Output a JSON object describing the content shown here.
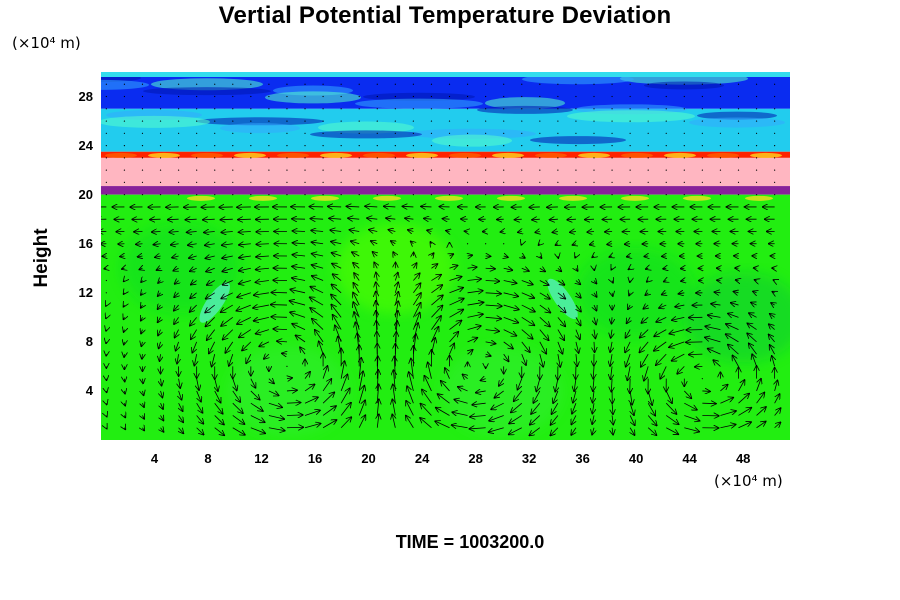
{
  "chart_data": {
    "type": "heatmap",
    "title": "Vertial Potential Temperature Deviation",
    "ylabel": "Height",
    "xunit": "(×10⁴ m)",
    "yunit": "(×10⁴ m)",
    "time_label": "TIME = 1003200.0",
    "xlim": [
      0,
      51.5
    ],
    "ylim": [
      0,
      30
    ],
    "xticks": [
      4,
      8,
      12,
      16,
      20,
      24,
      28,
      32,
      36,
      40,
      44,
      48
    ],
    "yticks": [
      4,
      8,
      12,
      16,
      20,
      24,
      28
    ],
    "colors": {
      "background_field": "#22ee11",
      "stratosphere": "#2266ff",
      "tropopause_band": "#ffb6c1",
      "inversion_line": "#882299",
      "warm_edge": "#ff2200"
    },
    "layers": [
      {
        "name": "deep blue",
        "y0": 27.0,
        "y1": 30.0
      },
      {
        "name": "cyan",
        "y0": 23.5,
        "y1": 27.0
      },
      {
        "name": "red edge",
        "y0": 23.0,
        "y1": 23.5
      },
      {
        "name": "pink",
        "y0": 20.7,
        "y1": 23.0
      },
      {
        "name": "purple",
        "y0": 20.0,
        "y1": 20.7
      },
      {
        "name": "green",
        "y0": 0.0,
        "y1": 20.0
      }
    ],
    "vortices": [
      {
        "cx": 14,
        "cy": 6,
        "rx": 6.2,
        "ry": 5.8,
        "rotation": "counterclockwise"
      },
      {
        "cx": 28,
        "cy": 6,
        "rx": 6.0,
        "ry": 5.8,
        "rotation": "clockwise"
      },
      {
        "cx": 45,
        "cy": 5,
        "rx": 4.5,
        "ry": 4.0,
        "rotation": "counterclockwise"
      }
    ],
    "vector_field": "wind arrows"
  }
}
